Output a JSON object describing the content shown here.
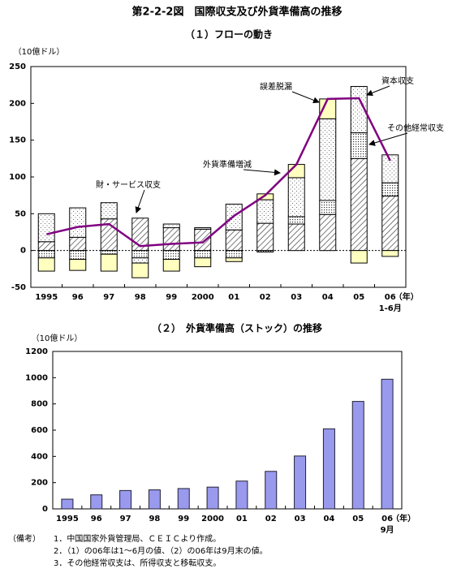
{
  "title": "第2-2-2図　国際収支及び外貨準備高の推移",
  "chart_data": [
    {
      "type": "stacked_bar",
      "subtitle": "（１）フローの動き",
      "unit": "（10億ドル）",
      "categories": [
        "1995",
        "96",
        "97",
        "98",
        "99",
        "2000",
        "01",
        "02",
        "03",
        "04",
        "05",
        "06"
      ],
      "x_unit": "（年）",
      "category_note": "1-6月",
      "ylim": [
        -50,
        250
      ],
      "yticks": [
        -50,
        0,
        50,
        100,
        150,
        200,
        250
      ],
      "zero_line": "dotted",
      "series": [
        {
          "name": "財・サービス収支",
          "pattern": "hatch",
          "color": "#555555",
          "values": [
            12,
            18,
            43,
            44,
            31,
            29,
            28,
            37,
            36,
            49,
            125,
            74
          ]
        },
        {
          "name": "その他経常収支",
          "pattern": "dense-dots",
          "color": "#555555",
          "values": [
            -10,
            -12,
            -5,
            -10,
            -12,
            -10,
            -10,
            -2,
            10,
            19,
            35,
            18
          ]
        },
        {
          "name": "資本収支",
          "pattern": "sparse-dots",
          "color": "#888888",
          "values": [
            38,
            40,
            22,
            -7,
            5,
            2,
            35,
            32,
            53,
            111,
            63,
            38
          ]
        },
        {
          "name": "誤差脱漏",
          "pattern": "solid",
          "color": "#ffffc0",
          "values": [
            -18,
            -15,
            -23,
            -20,
            -16,
            -12,
            -5,
            8,
            18,
            27,
            -17,
            -8
          ]
        },
        {
          "name": "外貨準備増減",
          "kind": "line",
          "color": "#800080",
          "values": [
            22,
            32,
            36,
            6,
            9,
            11,
            47,
            75,
            117,
            206,
            207,
            122
          ]
        }
      ]
    },
    {
      "type": "bar",
      "subtitle": "（２）　外貨準備高（ストック）の推移",
      "unit": "（10億ドル）",
      "categories": [
        "1995",
        "96",
        "97",
        "98",
        "99",
        "2000",
        "01",
        "02",
        "03",
        "04",
        "05",
        "06"
      ],
      "x_unit": "（年）",
      "category_note": "9月",
      "ylim": [
        0,
        1200
      ],
      "yticks": [
        0,
        200,
        400,
        600,
        800,
        1000,
        1200
      ],
      "color": "#9999ee",
      "values": [
        74,
        107,
        140,
        145,
        155,
        166,
        212,
        286,
        403,
        610,
        819,
        988
      ]
    }
  ],
  "notes": {
    "label": "（備考）",
    "items": [
      "1．中国国家外貨管理局、ＣＥＩＣより作成。",
      "2．（1）の06年は1～6月の値、（2）の06年は9月末の値。",
      "3．その他経常収支は、所得収支と移転収支。"
    ]
  }
}
